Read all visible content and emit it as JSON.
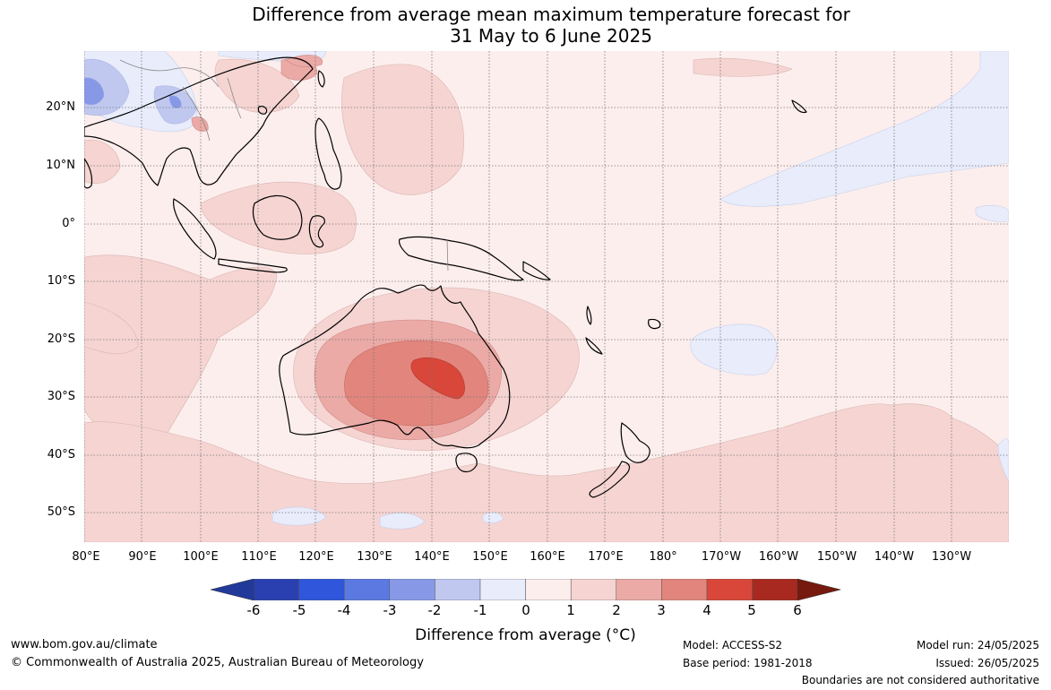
{
  "title": {
    "line1": "Difference from average mean maximum temperature forecast for",
    "line2": "31 May to 6 June 2025"
  },
  "map": {
    "region": "Australia, Maritime Continent and western Pacific Ocean",
    "lat_labels": [
      "20°N",
      "10°N",
      "0°",
      "10°S",
      "20°S",
      "30°S",
      "40°S",
      "50°S"
    ],
    "lon_labels": [
      "80°E",
      "90°E",
      "100°E",
      "110°E",
      "120°E",
      "130°E",
      "140°E",
      "150°E",
      "160°E",
      "170°E",
      "180°",
      "170°W",
      "160°W",
      "150°W",
      "140°W",
      "130°W"
    ],
    "palette": {
      "-6": "#213a9a",
      "-5": "#2f56db",
      "-4": "#5b79e0",
      "-3": "#8799e6",
      "-2": "#c0c8f0",
      "-1": "#e8ecfb",
      "0": "#fceeed",
      "1": "#f5d4d2",
      "2": "#ebaaa6",
      "3": "#e2857d",
      "4": "#d8473a",
      "5": "#a7291f",
      "6": "#76190f"
    }
  },
  "colorbar": {
    "ticks": [
      "-6",
      "-5",
      "-4",
      "-3",
      "-2",
      "-1",
      "0",
      "1",
      "2",
      "3",
      "4",
      "5",
      "6"
    ],
    "label": "Difference from average (°C)"
  },
  "footer": {
    "website": "www.bom.gov.au/climate",
    "copyright": "© Commonwealth of Australia 2025, Australian Bureau of Meteorology",
    "model": "Model: ACCESS-S2",
    "base_period": "Base period: 1981-2018",
    "model_run": "Model run: 24/05/2025",
    "issued": "Issued: 26/05/2025",
    "disclaimer": "Boundaries are not considered authoritative"
  }
}
